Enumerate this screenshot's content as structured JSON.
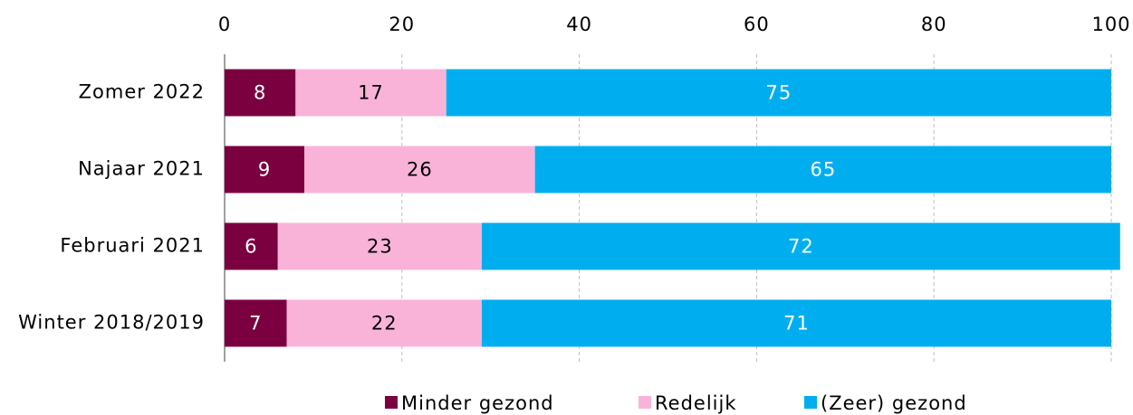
{
  "chart_data": {
    "type": "stacked_barh",
    "categories": [
      "Zomer 2022",
      "Najaar 2021",
      "Februari 2021",
      "Winter 2018/2019"
    ],
    "series": [
      {
        "name": "Minder gezond",
        "color": "#7a0040",
        "values": [
          8,
          9,
          6,
          7
        ]
      },
      {
        "name": "Redelijk",
        "color": "#f9b3d9",
        "values": [
          17,
          26,
          23,
          22
        ]
      },
      {
        "name": "(Zeer) gezond",
        "color": "#00aeef",
        "values": [
          75,
          65,
          72,
          71
        ]
      }
    ],
    "xlim": [
      0,
      100
    ],
    "xticks": [
      0,
      20,
      40,
      60,
      80,
      100
    ],
    "grid": true,
    "legend": "bottom"
  }
}
